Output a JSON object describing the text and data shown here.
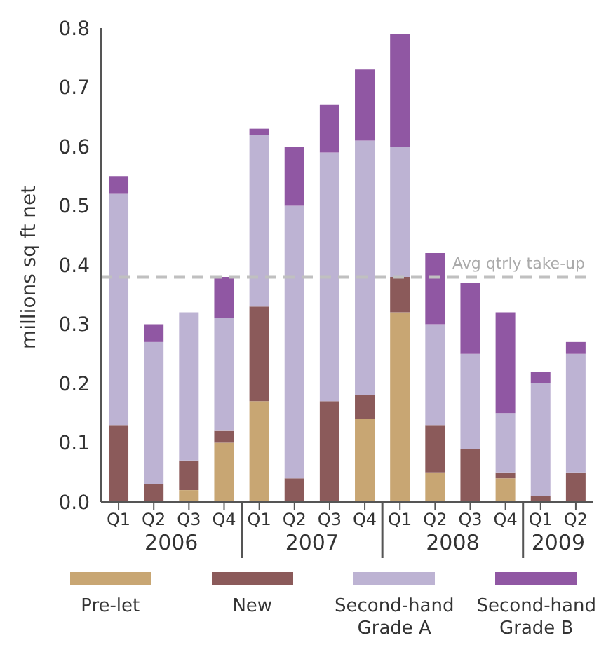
{
  "chart_data": {
    "type": "bar",
    "stacked": true,
    "ylabel": "millions sq ft net",
    "categories": [
      "Q1",
      "Q2",
      "Q3",
      "Q4",
      "Q1",
      "Q2",
      "Q3",
      "Q4",
      "Q1",
      "Q2",
      "Q3",
      "Q4",
      "Q1",
      "Q2"
    ],
    "annotations": [
      "2006",
      "2007",
      "2008",
      "2009"
    ],
    "series": [
      {
        "name": "Pre-let",
        "color": "#c8a673",
        "values": [
          0,
          0,
          0.02,
          0.1,
          0.17,
          0,
          0,
          0.14,
          0.32,
          0.05,
          0,
          0.04,
          0,
          0
        ]
      },
      {
        "name": "New",
        "color": "#8b5a5a",
        "values": [
          0.13,
          0.03,
          0.05,
          0.02,
          0.16,
          0.04,
          0.17,
          0.04,
          0.06,
          0.08,
          0.09,
          0.01,
          0.01,
          0.05
        ]
      },
      {
        "name": "Second-hand Grade A",
        "color": "#bdb3d3",
        "values": [
          0.39,
          0.24,
          0.25,
          0.19,
          0.29,
          0.46,
          0.42,
          0.43,
          0.22,
          0.17,
          0.16,
          0.1,
          0.19,
          0.2
        ]
      },
      {
        "name": "Second-hand Grade B",
        "color": "#9057a3",
        "values": [
          0.03,
          0.03,
          0,
          0.07,
          0.01,
          0.1,
          0.08,
          0.12,
          0.19,
          0.12,
          0.12,
          0.17,
          0.02,
          0.02
        ]
      }
    ],
    "ylim": [
      0,
      0.8
    ],
    "yticks": [
      {
        "value": 0,
        "label": "0.0"
      },
      {
        "value": 0.1,
        "label": "0.1"
      },
      {
        "value": 0.2,
        "label": "0.2"
      },
      {
        "value": 0.3,
        "label": "0.3"
      },
      {
        "value": 0.4,
        "label": "0.4"
      },
      {
        "value": 0.5,
        "label": "0.5"
      },
      {
        "value": 0.6,
        "label": "0.6"
      },
      {
        "value": 0.7,
        "label": "0.7"
      },
      {
        "value": 0.8,
        "label": "0.8"
      }
    ],
    "ref_lines": [
      {
        "axis": "y",
        "value": 0.38,
        "label": "Avg qtrly take-up",
        "color": "#c0c0c0",
        "line_style": "dashed"
      }
    ],
    "grid": false,
    "legend": "bottom"
  }
}
